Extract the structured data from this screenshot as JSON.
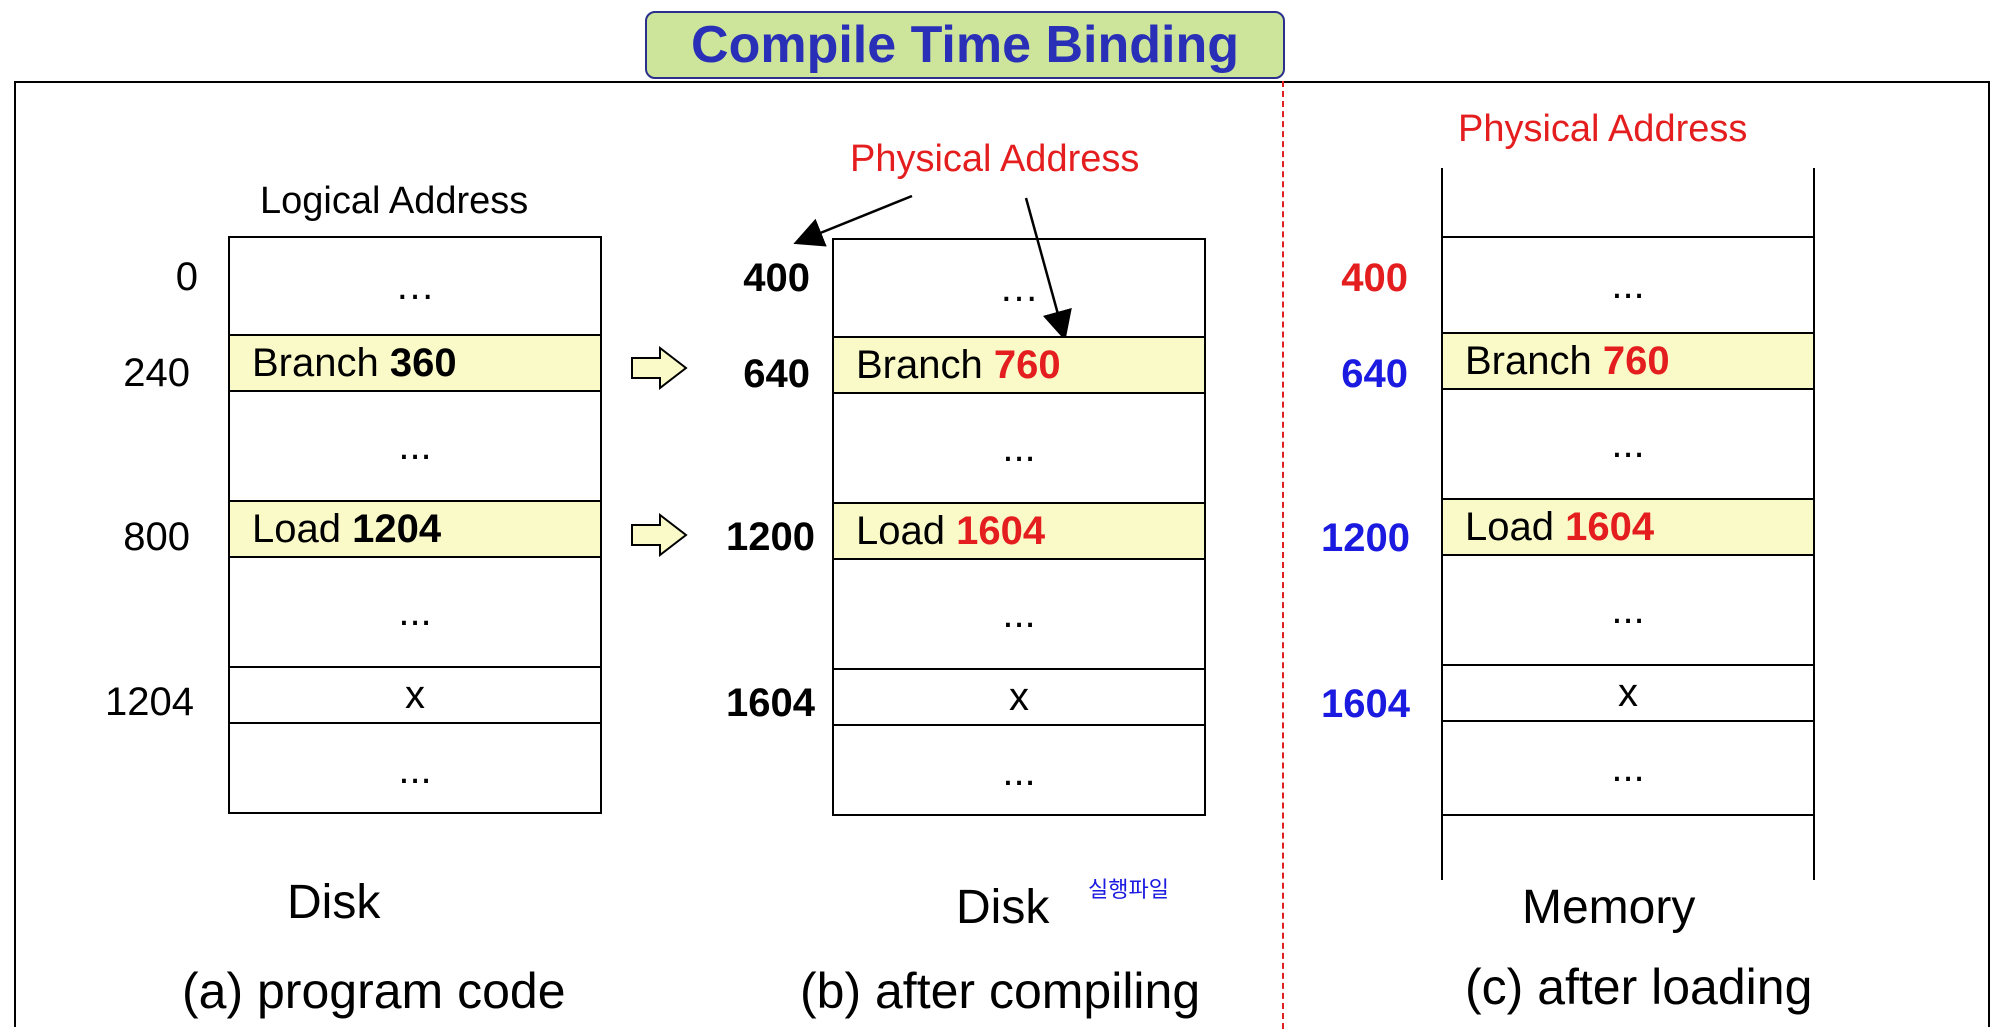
{
  "title": "Compile Time Binding",
  "panel_a": {
    "header": "Logical Address",
    "addresses": [
      "0",
      "240",
      "800",
      "1204"
    ],
    "rows": [
      {
        "op": "",
        "value": "…"
      },
      {
        "op": "Branch",
        "value": "360"
      },
      {
        "op": "",
        "value": "..."
      },
      {
        "op": "Load",
        "value": "1204"
      },
      {
        "op": "",
        "value": "..."
      },
      {
        "op": "",
        "value": "x"
      },
      {
        "op": "",
        "value": "..."
      }
    ],
    "storage": "Disk",
    "caption": "(a) program code"
  },
  "panel_b": {
    "header": "Physical Address",
    "addresses": [
      "400",
      "640",
      "1200",
      "1604"
    ],
    "rows": [
      {
        "op": "",
        "value": "…"
      },
      {
        "op": "Branch",
        "value": "760"
      },
      {
        "op": "",
        "value": "..."
      },
      {
        "op": "Load",
        "value": "1604"
      },
      {
        "op": "",
        "value": "..."
      },
      {
        "op": "",
        "value": "x"
      },
      {
        "op": "",
        "value": "..."
      }
    ],
    "storage": "Disk",
    "storage_note": "실행파일",
    "caption": "(b) after compiling"
  },
  "panel_c": {
    "header": "Physical Address",
    "addresses": [
      "400",
      "640",
      "1200",
      "1604"
    ],
    "rows": [
      {
        "op": "",
        "value": "..."
      },
      {
        "op": "Branch",
        "value": "760"
      },
      {
        "op": "",
        "value": "..."
      },
      {
        "op": "Load",
        "value": "1604"
      },
      {
        "op": "",
        "value": "..."
      },
      {
        "op": "",
        "value": "x"
      },
      {
        "op": "",
        "value": "..."
      }
    ],
    "storage": "Memory",
    "caption": "(c) after loading"
  },
  "colors": {
    "title_bg": "#cce59a",
    "title_text": "#2a2fb8",
    "highlight_row": "#fafac8",
    "arrow_fill": "#fafac8",
    "red": "#e41e1e",
    "blue": "#1a1ae0"
  }
}
